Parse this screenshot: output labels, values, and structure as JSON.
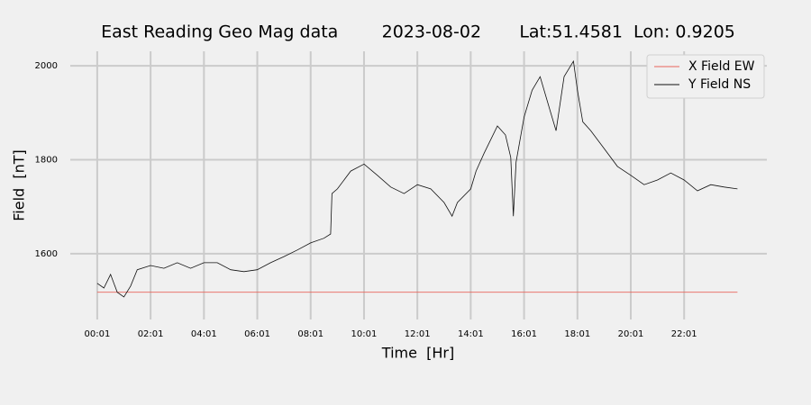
{
  "chart_data": {
    "type": "line",
    "title": "East Reading Geo Mag data        2023-08-02       Lat:51.4581  Lon: 0.9205",
    "xlabel": "Time  [Hr]",
    "ylabel": "Field  [nT]",
    "xlim": [
      -1.01,
      25.1
    ],
    "ylim": [
      1460,
      2031
    ],
    "xticks": [
      {
        "value": 0,
        "label": "00:01"
      },
      {
        "value": 2,
        "label": "02:01"
      },
      {
        "value": 4,
        "label": "04:01"
      },
      {
        "value": 6,
        "label": "06:01"
      },
      {
        "value": 8,
        "label": "08:01"
      },
      {
        "value": 10,
        "label": "10:01"
      },
      {
        "value": 12,
        "label": "12:01"
      },
      {
        "value": 14,
        "label": "14:01"
      },
      {
        "value": 16,
        "label": "16:01"
      },
      {
        "value": 18,
        "label": "18:01"
      },
      {
        "value": 20,
        "label": "20:01"
      },
      {
        "value": 22,
        "label": "22:01"
      }
    ],
    "yticks": [
      1600,
      1800,
      2000
    ],
    "grid": true,
    "legend": "upper right",
    "x": [
      0,
      0.25,
      0.5,
      0.75,
      1,
      1.25,
      1.5,
      2,
      2.5,
      3,
      3.5,
      4,
      4.5,
      5,
      5.5,
      6,
      6.5,
      7,
      7.5,
      8,
      8.5,
      8.75,
      8.8,
      9,
      9.5,
      10,
      10.5,
      11,
      11.5,
      12,
      12.5,
      13,
      13.3,
      13.5,
      14,
      14.2,
      14.5,
      15,
      15.3,
      15.5,
      15.6,
      15.7,
      16,
      16.3,
      16.6,
      17,
      17.2,
      17.5,
      17.85,
      18,
      18.2,
      18.5,
      19,
      19.5,
      20,
      20.5,
      21,
      21.5,
      22,
      22.5,
      23,
      23.5,
      24
    ],
    "series": [
      {
        "name": "X Field EW",
        "color": "#e8645a",
        "values": [
          1518,
          1518,
          1518,
          1518,
          1518,
          1518,
          1518,
          1518,
          1518,
          1518,
          1518,
          1518,
          1518,
          1518,
          1518,
          1518,
          1518,
          1518,
          1518,
          1518,
          1518,
          1518,
          1518,
          1518,
          1518,
          1518,
          1518,
          1518,
          1518,
          1518,
          1518,
          1518,
          1518,
          1518,
          1518,
          1518,
          1518,
          1518,
          1518,
          1518,
          1518,
          1518,
          1518,
          1518,
          1518,
          1518,
          1518,
          1518,
          1518,
          1518,
          1518,
          1518,
          1518,
          1518,
          1518,
          1518,
          1518,
          1518,
          1518,
          1518,
          1518,
          1518,
          1518
        ]
      },
      {
        "name": "Y Field NS",
        "color": "#111111",
        "values": [
          1537,
          1527,
          1556,
          1518,
          1508,
          1531,
          1566,
          1575,
          1569,
          1581,
          1569,
          1581,
          1581,
          1566,
          1562,
          1566,
          1581,
          1594,
          1608,
          1623,
          1633,
          1642,
          1728,
          1738,
          1776,
          1791,
          1767,
          1742,
          1728,
          1747,
          1738,
          1709,
          1680,
          1709,
          1738,
          1776,
          1814,
          1872,
          1853,
          1805,
          1680,
          1795,
          1891,
          1948,
          1977,
          1900,
          1862,
          1977,
          2010,
          1948,
          1881,
          1862,
          1824,
          1786,
          1767,
          1747,
          1757,
          1772,
          1757,
          1734,
          1747,
          1742,
          1738
        ]
      }
    ]
  }
}
